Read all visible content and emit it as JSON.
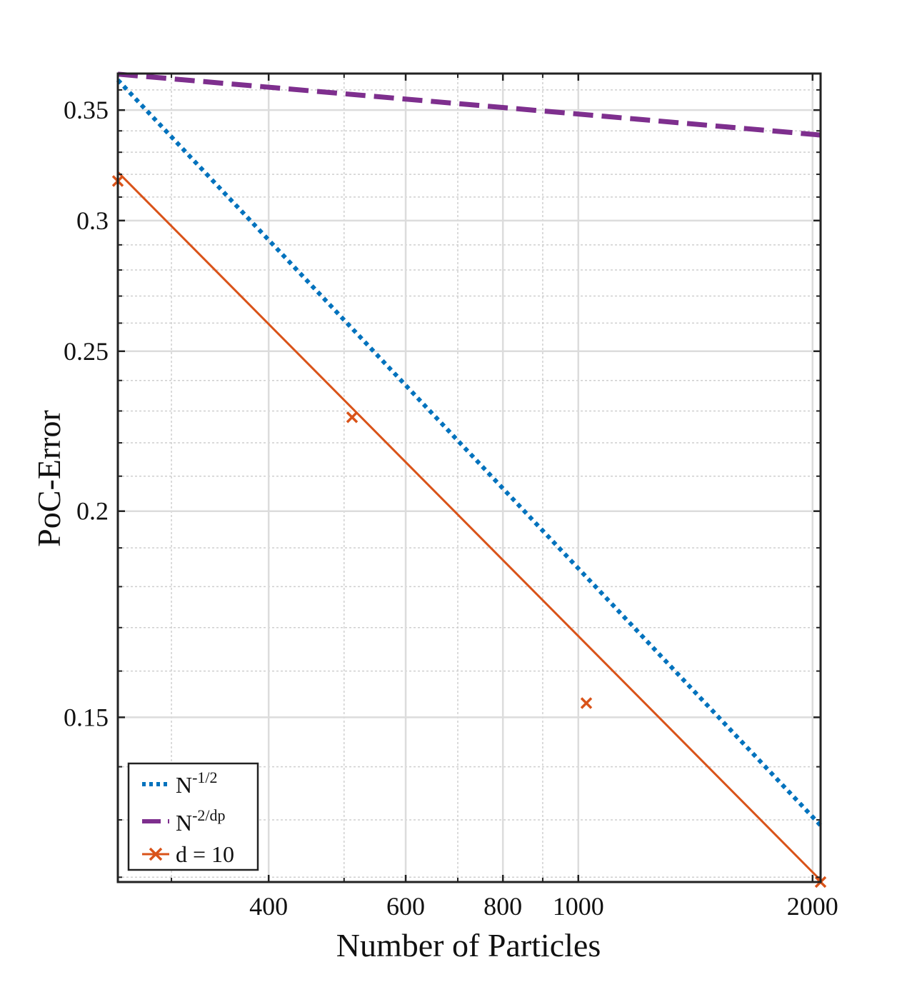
{
  "chart_data": {
    "type": "line",
    "x_scale": "log",
    "y_scale": "log",
    "xlabel": "Number of Particles",
    "ylabel": "PoC-Error",
    "xlim": [
      256,
      2048
    ],
    "ylim": [
      0.1192,
      0.3683
    ],
    "x_ticks": [
      {
        "value": 400,
        "label": "400"
      },
      {
        "value": 600,
        "label": "600"
      },
      {
        "value": 800,
        "label": "800"
      },
      {
        "value": 1000,
        "label": "1000"
      },
      {
        "value": 2000,
        "label": "2000"
      }
    ],
    "y_ticks": [
      {
        "value": 0.15,
        "label": "0.15"
      },
      {
        "value": 0.2,
        "label": "0.2"
      },
      {
        "value": 0.25,
        "label": "0.25"
      },
      {
        "value": 0.3,
        "label": "0.3"
      },
      {
        "value": 0.35,
        "label": "0.35"
      }
    ],
    "x_minor_grid": [
      300,
      500,
      700,
      900
    ],
    "y_minor_grid": [
      0.12,
      0.13,
      0.14,
      0.16,
      0.17,
      0.18,
      0.19,
      0.21,
      0.22,
      0.23,
      0.24,
      0.26,
      0.27,
      0.28,
      0.29,
      0.31,
      0.32,
      0.33,
      0.34,
      0.36
    ],
    "grid": true,
    "legend_position": "bottom-left",
    "series": [
      {
        "name": "N^-1/2",
        "legend_base": "N",
        "legend_sup": "-1/2",
        "style": "dotted",
        "color": "#0072BD",
        "x": [
          256,
          2048
        ],
        "y": [
          0.365,
          0.129
        ]
      },
      {
        "name": "N^-2/dp",
        "legend_base": "N",
        "legend_sup": "-2/dp",
        "style": "dashed",
        "color": "#7E2F8E",
        "x": [
          256,
          2048
        ],
        "y": [
          0.368,
          0.338
        ]
      },
      {
        "name": "d = 10",
        "legend_base": "d = 10",
        "legend_sup": "",
        "style": "solid",
        "marker": "x",
        "color": "#D95319",
        "x": [
          256,
          2048
        ],
        "y": [
          0.321,
          0.1195
        ],
        "markers": {
          "x": [
            256,
            512,
            1024,
            2048
          ],
          "y": [
            0.317,
            0.228,
            0.153,
            0.1192
          ]
        }
      }
    ]
  }
}
